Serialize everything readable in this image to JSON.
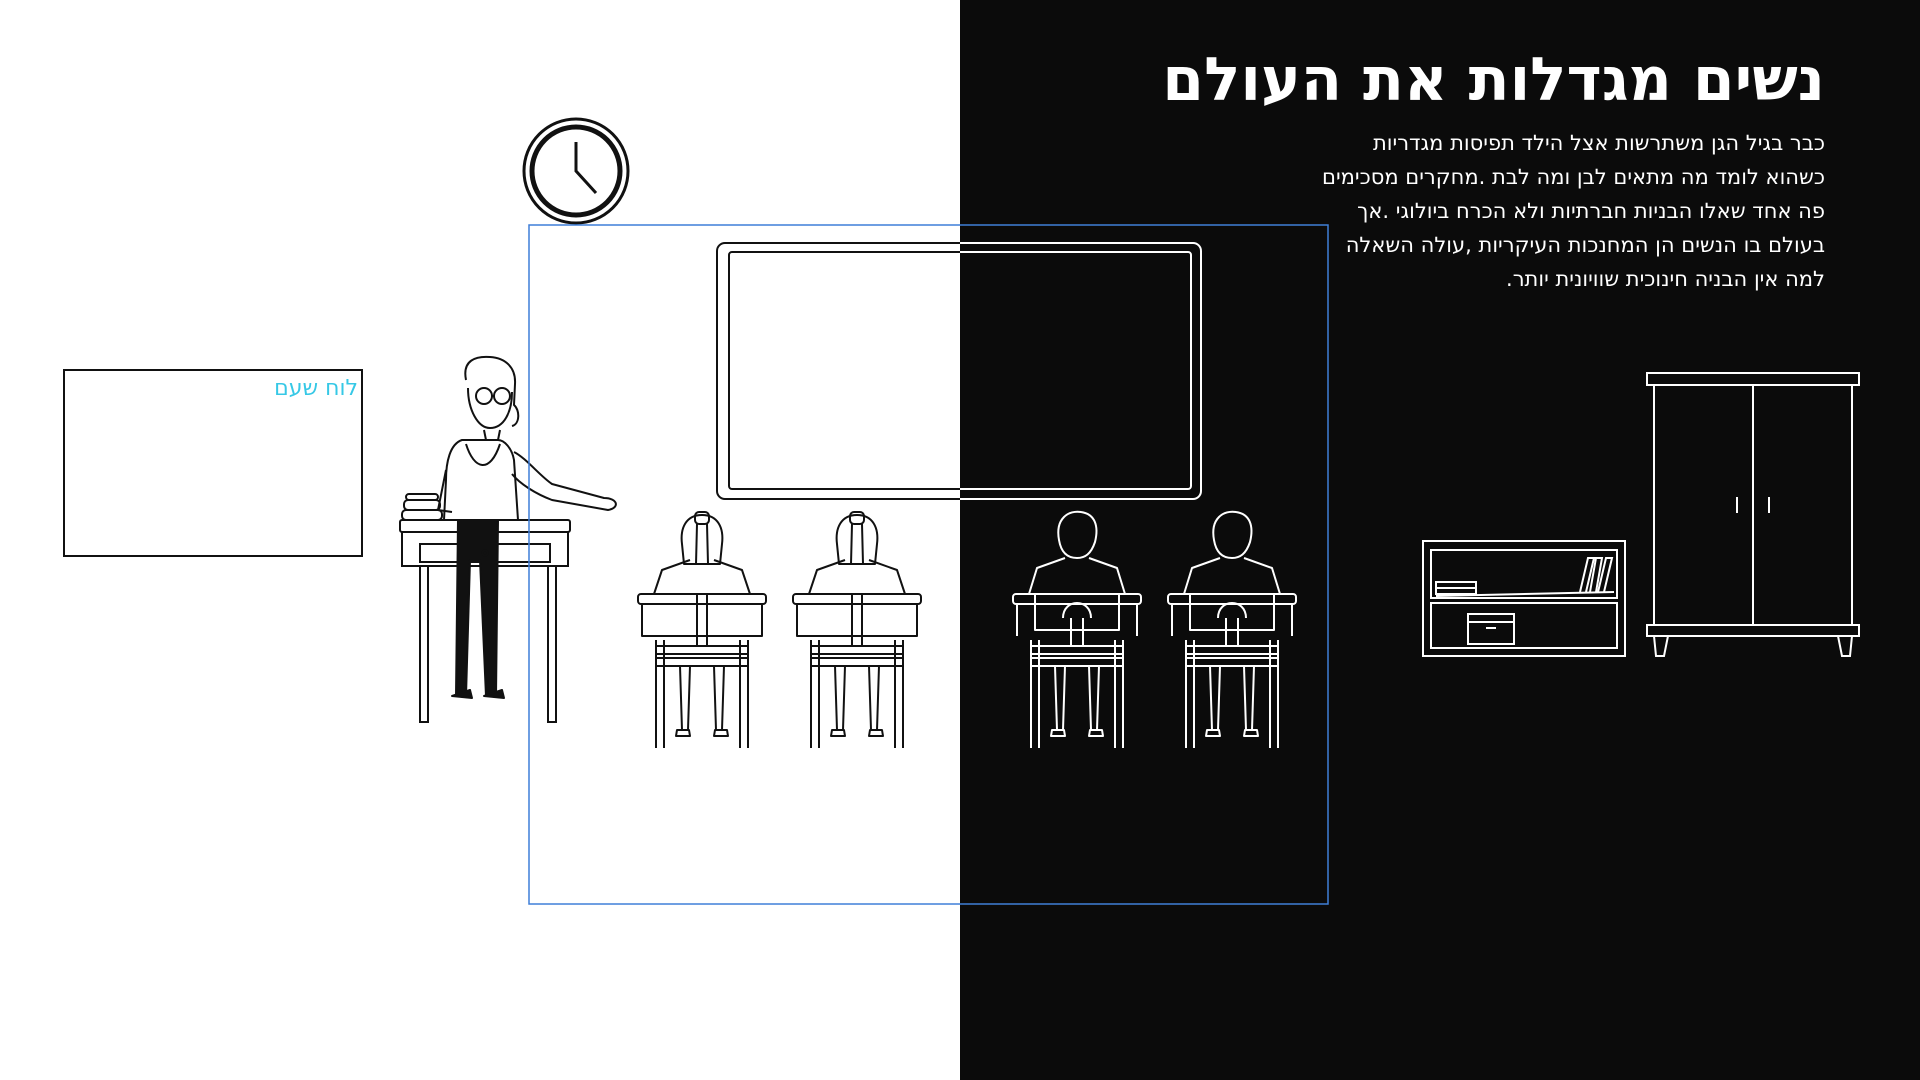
{
  "title": "נשים מגדלות את העולם",
  "paragraph_lines": [
    "כבר בגיל הגן משתרשות אצל הילד תפיסות מגדריות",
    "כשהוא לומד מה מתאים לבן ומה לבת .מחקרים מסכימים",
    "פה אחד שאלו הבניות חברתיות ולא הכרח ביולוגי .אך",
    "בעולם בו הנשים הן המחנכות העיקריות ,עולה השאלה",
    "למה אין הבניה חינוכית שוויונית יותר."
  ],
  "board_label": "לוח שעם",
  "colors": {
    "dark_background": "#0b0b0b",
    "light_background": "#ffffff",
    "label_accent": "#36c8e6",
    "selection_frame": "#3f7fd8"
  },
  "icons": [
    "clock-icon",
    "whiteboard",
    "teacher",
    "teacher-desk",
    "student-girl",
    "student-boy",
    "bookshelf",
    "wardrobe",
    "corkboard"
  ]
}
